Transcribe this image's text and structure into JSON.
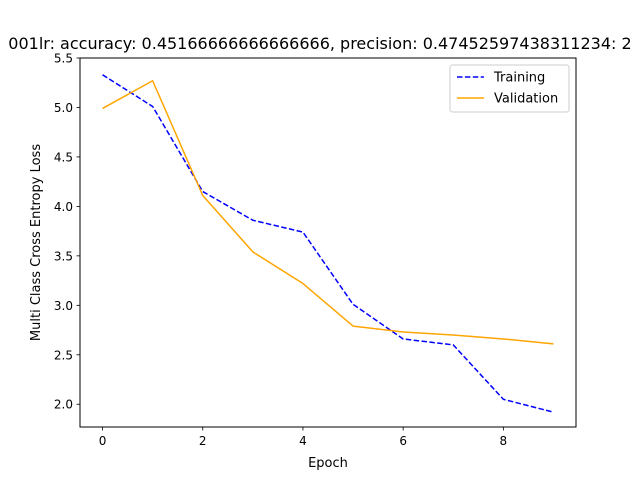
{
  "chart_data": {
    "type": "line",
    "title": "001lr: accuracy: 0.45166666666666666, precision: 0.47452597438311234: 2",
    "xlabel": "Epoch",
    "ylabel": "Multi Class Cross Entropy Loss",
    "xlim": [
      -0.45,
      9.45
    ],
    "ylim": [
      1.77,
      5.5
    ],
    "xticks": [
      0,
      2,
      4,
      6,
      8
    ],
    "yticks": [
      2.0,
      2.5,
      3.0,
      3.5,
      4.0,
      4.5,
      5.0,
      5.5
    ],
    "legend_position": "top-right",
    "grid": false,
    "x": [
      0,
      1,
      2,
      3,
      4,
      5,
      6,
      7,
      8,
      9
    ],
    "series": [
      {
        "name": "Training",
        "color": "#0000ff",
        "style": "dashed",
        "values": [
          5.33,
          5.01,
          4.15,
          3.86,
          3.74,
          3.01,
          2.66,
          2.6,
          2.05,
          1.92
        ]
      },
      {
        "name": "Validation",
        "color": "#ffa500",
        "style": "solid",
        "values": [
          4.99,
          5.27,
          4.11,
          3.54,
          3.22,
          2.79,
          2.73,
          2.7,
          2.66,
          2.61
        ]
      }
    ]
  }
}
